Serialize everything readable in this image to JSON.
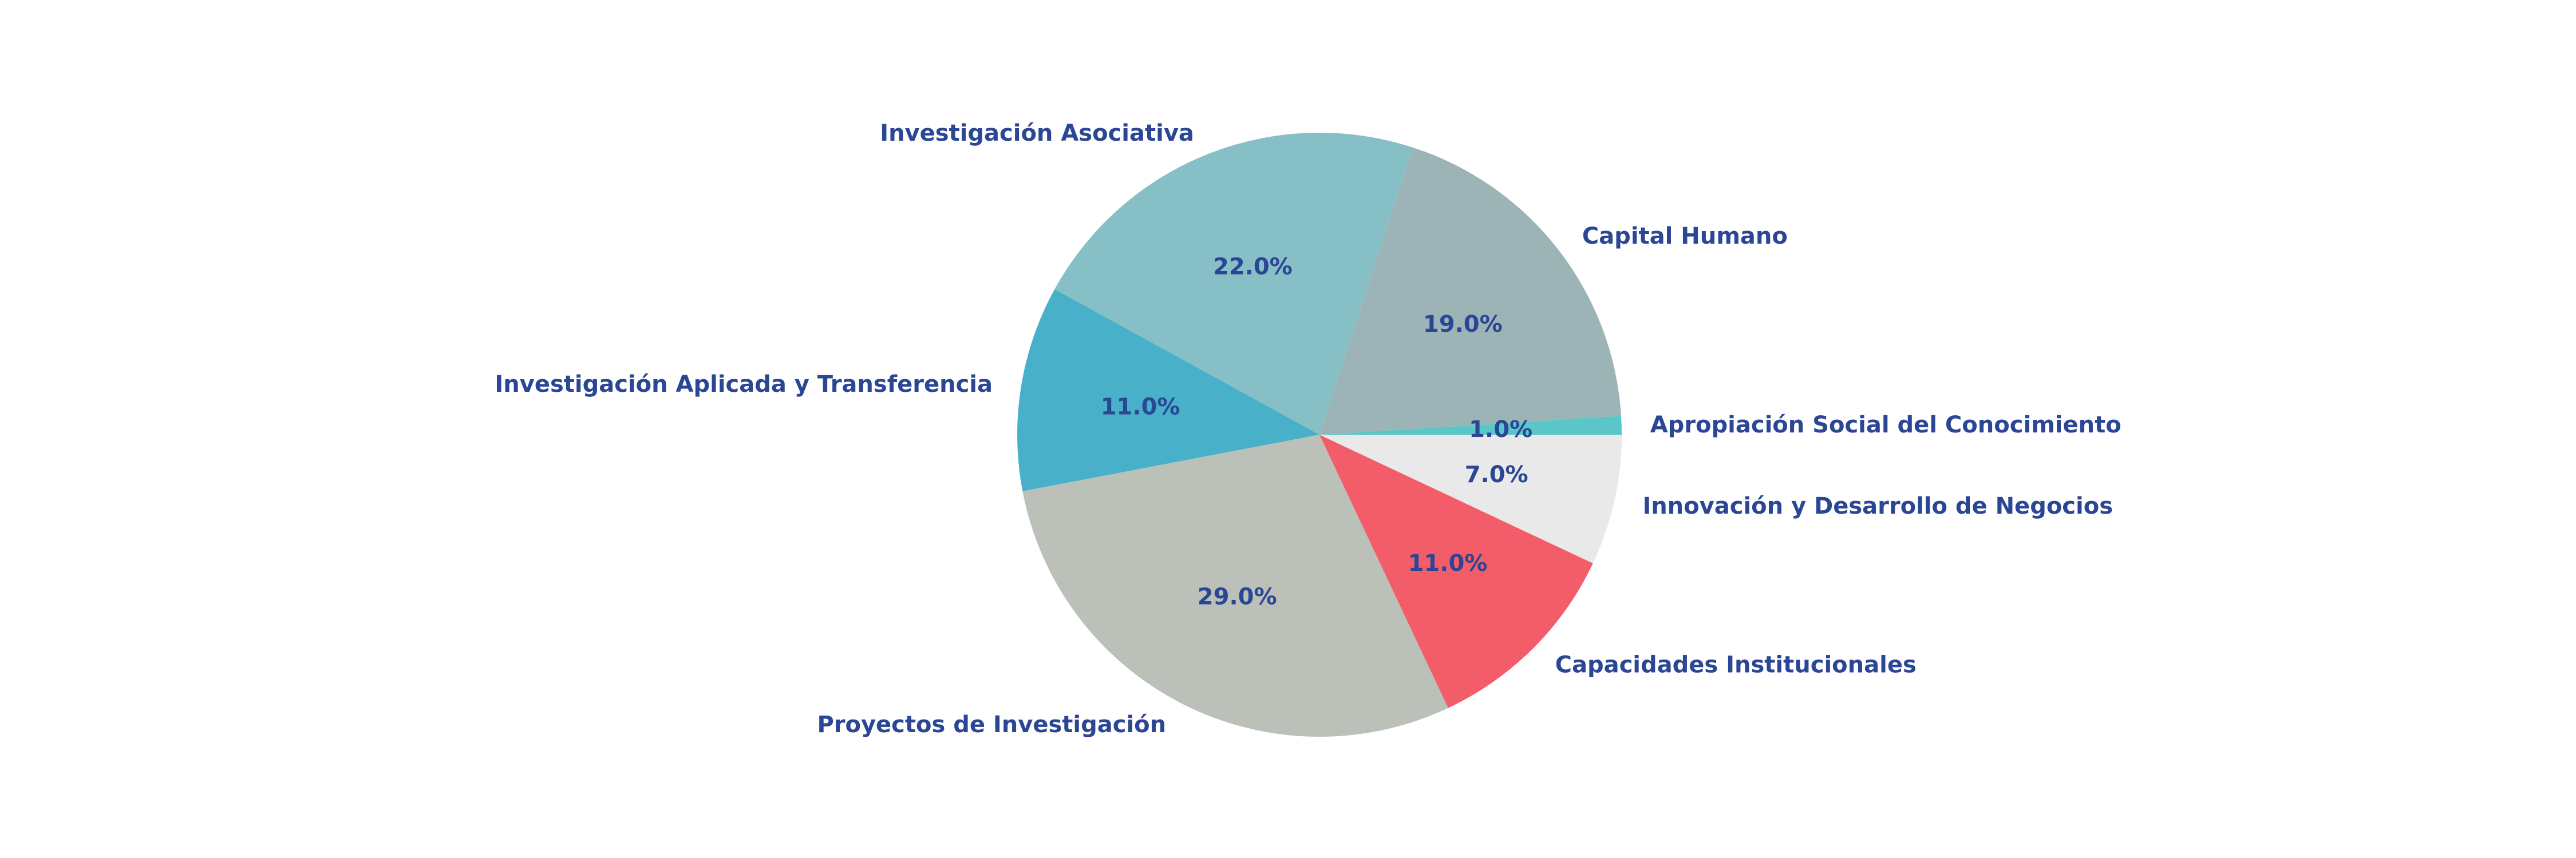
{
  "chart_data": {
    "type": "pie",
    "title": "",
    "categories": [
      "Apropiación Social del Conocimiento",
      "Capital Humano",
      "Investigación Asociativa",
      "Investigación Aplicada y Transferencia",
      "Proyectos de Investigación",
      "Capacidades Institucionales",
      "Innovación y Desarrollo de Negocios"
    ],
    "values": [
      1.0,
      19.0,
      22.0,
      11.0,
      29.0,
      11.0,
      7.0
    ],
    "percent_labels": [
      "1.0%",
      "19.0%",
      "22.0%",
      "11.0%",
      "29.0%",
      "11.0%",
      "7.0%"
    ],
    "colors": [
      "#5bc6c8",
      "#9db4b6",
      "#86bfc5",
      "#48b1c9",
      "#bbc0b9",
      "#f35d69",
      "#e9e9e9"
    ],
    "label_color": "#2a4694",
    "start_angle_deg": 0,
    "direction": "counterclockwise",
    "legend": "none"
  }
}
